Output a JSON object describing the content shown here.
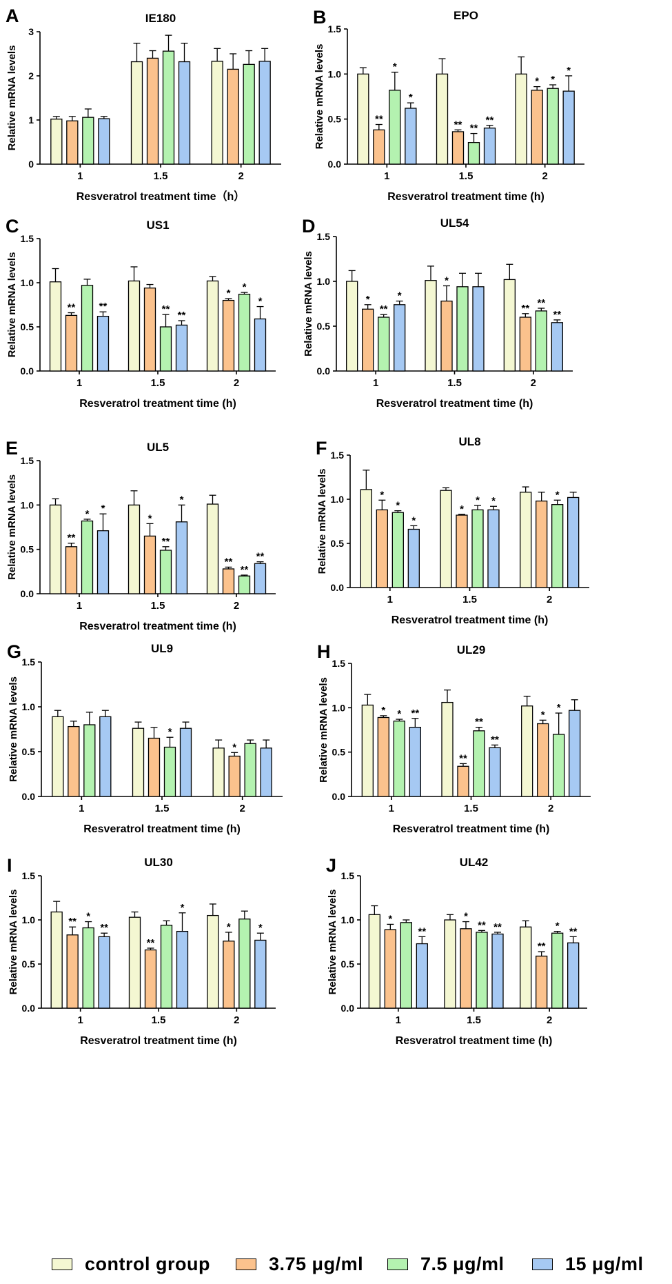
{
  "colors": {
    "control group": "#f4f7d2",
    "3.75 μg/ml": "#fbc28d",
    "7.5 μg/ml": "#b4f2b0",
    "15 μg/ml": "#a6c9f3"
  },
  "legend": {
    "items": [
      {
        "label": "control  group",
        "series": "control group"
      },
      {
        "label": "3.75 μg/ml",
        "series": "3.75 μg/ml"
      },
      {
        "label": "7.5 μg/ml",
        "series": "7.5 μg/ml"
      },
      {
        "label": "15  μg/ml",
        "series": "15 μg/ml"
      }
    ]
  },
  "chart_data": [
    {
      "panel": "A",
      "type": "bar",
      "title": "IE180",
      "xlabel": "Resveratrol treatment time（h）",
      "ylabel": "Relative mRNA levels",
      "categories": [
        "1",
        "1.5",
        "2"
      ],
      "ylim": [
        0,
        3
      ],
      "yticks": [
        "0",
        "1",
        "2",
        "3"
      ],
      "series": [
        {
          "name": "control group",
          "values": [
            1.02,
            2.32,
            2.33
          ],
          "errors": [
            0.06,
            0.42,
            0.29
          ],
          "sig": [
            "",
            "",
            ""
          ]
        },
        {
          "name": "3.75 μg/ml",
          "values": [
            0.98,
            2.4,
            2.15
          ],
          "errors": [
            0.1,
            0.17,
            0.35
          ],
          "sig": [
            "",
            "",
            ""
          ]
        },
        {
          "name": "7.5 μg/ml",
          "values": [
            1.06,
            2.56,
            2.26
          ],
          "errors": [
            0.19,
            0.36,
            0.31
          ],
          "sig": [
            "",
            "",
            ""
          ]
        },
        {
          "name": "15 μg/ml",
          "values": [
            1.03,
            2.32,
            2.33
          ],
          "errors": [
            0.05,
            0.42,
            0.29
          ],
          "sig": [
            "",
            "",
            ""
          ]
        }
      ]
    },
    {
      "panel": "B",
      "type": "bar",
      "title": "EPO",
      "xlabel": "Resveratrol treatment time (h)",
      "ylabel": "Relative mRNA levels",
      "categories": [
        "1",
        "1.5",
        "2"
      ],
      "ylim": [
        0,
        1.5
      ],
      "yticks": [
        "0.0",
        "0.5",
        "1.0",
        "1.5"
      ],
      "series": [
        {
          "name": "control group",
          "values": [
            1.0,
            1.0,
            1.0
          ],
          "errors": [
            0.07,
            0.17,
            0.19
          ],
          "sig": [
            "",
            "",
            ""
          ]
        },
        {
          "name": "3.75 μg/ml",
          "values": [
            0.38,
            0.36,
            0.82
          ],
          "errors": [
            0.06,
            0.02,
            0.04
          ],
          "sig": [
            "**",
            "**",
            "*"
          ]
        },
        {
          "name": "7.5 μg/ml",
          "values": [
            0.82,
            0.24,
            0.84
          ],
          "errors": [
            0.2,
            0.1,
            0.04
          ],
          "sig": [
            "*",
            "**",
            "*"
          ]
        },
        {
          "name": "15 μg/ml",
          "values": [
            0.62,
            0.4,
            0.81
          ],
          "errors": [
            0.06,
            0.03,
            0.17
          ],
          "sig": [
            "*",
            "**",
            "*"
          ]
        }
      ]
    },
    {
      "panel": "C",
      "type": "bar",
      "title": "US1",
      "xlabel": "Resveratrol treatment time (h)",
      "ylabel": "Relative mRNA levels",
      "categories": [
        "1",
        "1.5",
        "2"
      ],
      "ylim": [
        0,
        1.5
      ],
      "yticks": [
        "0.0",
        "0.5",
        "1.0",
        "1.5"
      ],
      "series": [
        {
          "name": "control group",
          "values": [
            1.01,
            1.02,
            1.02
          ],
          "errors": [
            0.15,
            0.16,
            0.05
          ],
          "sig": [
            "",
            "",
            ""
          ]
        },
        {
          "name": "3.75 μg/ml",
          "values": [
            0.63,
            0.94,
            0.8
          ],
          "errors": [
            0.03,
            0.04,
            0.02
          ],
          "sig": [
            "**",
            "",
            "*"
          ]
        },
        {
          "name": "7.5 μg/ml",
          "values": [
            0.97,
            0.5,
            0.87
          ],
          "errors": [
            0.07,
            0.14,
            0.02
          ],
          "sig": [
            "",
            "**",
            "*"
          ]
        },
        {
          "name": "15 μg/ml",
          "values": [
            0.62,
            0.52,
            0.59
          ],
          "errors": [
            0.05,
            0.05,
            0.14
          ],
          "sig": [
            "**",
            "**",
            "*"
          ]
        }
      ]
    },
    {
      "panel": "D",
      "type": "bar",
      "title": "UL54",
      "xlabel": "Resveratrol treatment time (h)",
      "ylabel": "Relative mRNA levels",
      "categories": [
        "1",
        "1.5",
        "2"
      ],
      "ylim": [
        0,
        1.5
      ],
      "yticks": [
        "0.0",
        "0.5",
        "1.0",
        "1.5"
      ],
      "series": [
        {
          "name": "control group",
          "values": [
            1.0,
            1.01,
            1.02
          ],
          "errors": [
            0.12,
            0.16,
            0.17
          ],
          "sig": [
            "",
            "",
            ""
          ]
        },
        {
          "name": "3.75 μg/ml",
          "values": [
            0.69,
            0.78,
            0.6
          ],
          "errors": [
            0.05,
            0.17,
            0.04
          ],
          "sig": [
            "*",
            "*",
            "**"
          ]
        },
        {
          "name": "7.5 μg/ml",
          "values": [
            0.6,
            0.94,
            0.67
          ],
          "errors": [
            0.03,
            0.15,
            0.03
          ],
          "sig": [
            "**",
            "",
            "**"
          ]
        },
        {
          "name": "15 μg/ml",
          "values": [
            0.74,
            0.94,
            0.54
          ],
          "errors": [
            0.04,
            0.15,
            0.03
          ],
          "sig": [
            "*",
            "",
            "**"
          ]
        }
      ]
    },
    {
      "panel": "E",
      "type": "bar",
      "title": "UL5",
      "xlabel": "Resveratrol treatment time (h)",
      "ylabel": "Relative mRNA levels",
      "categories": [
        "1",
        "1.5",
        "2"
      ],
      "ylim": [
        0,
        1.5
      ],
      "yticks": [
        "0.0",
        "0.5",
        "1.0",
        "1.5"
      ],
      "series": [
        {
          "name": "control group",
          "values": [
            1.0,
            1.0,
            1.01
          ],
          "errors": [
            0.07,
            0.16,
            0.1
          ],
          "sig": [
            "",
            "",
            ""
          ]
        },
        {
          "name": "3.75 μg/ml",
          "values": [
            0.53,
            0.65,
            0.28
          ],
          "errors": [
            0.04,
            0.14,
            0.02
          ],
          "sig": [
            "**",
            "*",
            "**"
          ]
        },
        {
          "name": "7.5 μg/ml",
          "values": [
            0.82,
            0.49,
            0.2
          ],
          "errors": [
            0.02,
            0.04,
            0.01
          ],
          "sig": [
            "*",
            "**",
            "**"
          ]
        },
        {
          "name": "15 μg/ml",
          "values": [
            0.71,
            0.81,
            0.34
          ],
          "errors": [
            0.19,
            0.19,
            0.02
          ],
          "sig": [
            "*",
            "*",
            "**"
          ]
        }
      ]
    },
    {
      "panel": "F",
      "type": "bar",
      "title": "UL8",
      "xlabel": "Resveratrol treatment time (h)",
      "ylabel": "Relative mRNA levels",
      "categories": [
        "1",
        "1.5",
        "2"
      ],
      "ylim": [
        0,
        1.5
      ],
      "yticks": [
        "0.0",
        "0.5",
        "1.0",
        "1.5"
      ],
      "series": [
        {
          "name": "control group",
          "values": [
            1.11,
            1.1,
            1.08
          ],
          "errors": [
            0.22,
            0.03,
            0.06
          ],
          "sig": [
            "",
            "",
            ""
          ]
        },
        {
          "name": "3.75 μg/ml",
          "values": [
            0.88,
            0.82,
            0.98
          ],
          "errors": [
            0.11,
            0.01,
            0.1
          ],
          "sig": [
            "*",
            "*",
            ""
          ]
        },
        {
          "name": "7.5 μg/ml",
          "values": [
            0.85,
            0.88,
            0.94
          ],
          "errors": [
            0.02,
            0.05,
            0.05
          ],
          "sig": [
            "*",
            "*",
            "*"
          ]
        },
        {
          "name": "15 μg/ml",
          "values": [
            0.66,
            0.88,
            1.02
          ],
          "errors": [
            0.04,
            0.04,
            0.06
          ],
          "sig": [
            "*",
            "*",
            ""
          ]
        }
      ]
    },
    {
      "panel": "G",
      "type": "bar",
      "title": "UL9",
      "xlabel": "Resveratrol treatment time (h)",
      "ylabel": "Relative mRNA levels",
      "categories": [
        "1",
        "1.5",
        "2"
      ],
      "ylim": [
        0,
        1.5
      ],
      "yticks": [
        "0.0",
        "0.5",
        "1.0",
        "1.5"
      ],
      "series": [
        {
          "name": "control group",
          "values": [
            0.89,
            0.76,
            0.54
          ],
          "errors": [
            0.07,
            0.07,
            0.09
          ],
          "sig": [
            "",
            "",
            ""
          ]
        },
        {
          "name": "3.75 μg/ml",
          "values": [
            0.78,
            0.65,
            0.45
          ],
          "errors": [
            0.06,
            0.12,
            0.04
          ],
          "sig": [
            "",
            "",
            "*"
          ]
        },
        {
          "name": "7.5 μg/ml",
          "values": [
            0.8,
            0.55,
            0.59
          ],
          "errors": [
            0.14,
            0.11,
            0.04
          ],
          "sig": [
            "",
            "*",
            ""
          ]
        },
        {
          "name": "15 μg/ml",
          "values": [
            0.89,
            0.76,
            0.54
          ],
          "errors": [
            0.07,
            0.07,
            0.09
          ],
          "sig": [
            "",
            "",
            ""
          ]
        }
      ]
    },
    {
      "panel": "H",
      "type": "bar",
      "title": "UL29",
      "xlabel": "Resveratrol treatment time (h)",
      "ylabel": "Relative mRNA levels",
      "categories": [
        "1",
        "1.5",
        "2"
      ],
      "ylim": [
        0,
        1.5
      ],
      "yticks": [
        "0.0",
        "0.5",
        "1.0",
        "1.5"
      ],
      "series": [
        {
          "name": "control group",
          "values": [
            1.03,
            1.06,
            1.02
          ],
          "errors": [
            0.12,
            0.14,
            0.11
          ],
          "sig": [
            "",
            "",
            ""
          ]
        },
        {
          "name": "3.75 μg/ml",
          "values": [
            0.89,
            0.34,
            0.82
          ],
          "errors": [
            0.02,
            0.03,
            0.04
          ],
          "sig": [
            "*",
            "**",
            "*"
          ]
        },
        {
          "name": "7.5 μg/ml",
          "values": [
            0.85,
            0.74,
            0.7
          ],
          "errors": [
            0.02,
            0.04,
            0.24
          ],
          "sig": [
            "*",
            "**",
            "*"
          ]
        },
        {
          "name": "15 μg/ml",
          "values": [
            0.78,
            0.55,
            0.97
          ],
          "errors": [
            0.1,
            0.03,
            0.12
          ],
          "sig": [
            "**",
            "**",
            ""
          ]
        }
      ]
    },
    {
      "panel": "I",
      "type": "bar",
      "title": "UL30",
      "xlabel": "Resveratrol treatment time (h)",
      "ylabel": "Relative mRNA levels",
      "categories": [
        "1",
        "1.5",
        "2"
      ],
      "ylim": [
        0,
        1.5
      ],
      "yticks": [
        "0.0",
        "0.5",
        "1.0",
        "1.5"
      ],
      "series": [
        {
          "name": "control group",
          "values": [
            1.09,
            1.03,
            1.05
          ],
          "errors": [
            0.12,
            0.06,
            0.13
          ],
          "sig": [
            "",
            "",
            ""
          ]
        },
        {
          "name": "3.75 μg/ml",
          "values": [
            0.83,
            0.66,
            0.76
          ],
          "errors": [
            0.09,
            0.02,
            0.1
          ],
          "sig": [
            "**",
            "**",
            "*"
          ]
        },
        {
          "name": "7.5 μg/ml",
          "values": [
            0.91,
            0.94,
            1.01
          ],
          "errors": [
            0.07,
            0.05,
            0.09
          ],
          "sig": [
            "*",
            "",
            ""
          ]
        },
        {
          "name": "15 μg/ml",
          "values": [
            0.81,
            0.87,
            0.77
          ],
          "errors": [
            0.04,
            0.21,
            0.08
          ],
          "sig": [
            "**",
            "*",
            "*"
          ]
        }
      ]
    },
    {
      "panel": "J",
      "type": "bar",
      "title": "UL42",
      "xlabel": "Resveratrol treatment time (h)",
      "ylabel": "Relative mRNA levels",
      "categories": [
        "1",
        "1.5",
        "2"
      ],
      "ylim": [
        0,
        1.5
      ],
      "yticks": [
        "0.0",
        "0.5",
        "1.0",
        "1.5"
      ],
      "series": [
        {
          "name": "control group",
          "values": [
            1.06,
            1.0,
            0.92
          ],
          "errors": [
            0.1,
            0.06,
            0.07
          ],
          "sig": [
            "",
            "",
            ""
          ]
        },
        {
          "name": "3.75 μg/ml",
          "values": [
            0.89,
            0.9,
            0.59
          ],
          "errors": [
            0.06,
            0.08,
            0.05
          ],
          "sig": [
            "*",
            "*",
            "**"
          ]
        },
        {
          "name": "7.5 μg/ml",
          "values": [
            0.97,
            0.86,
            0.85
          ],
          "errors": [
            0.03,
            0.02,
            0.02
          ],
          "sig": [
            "",
            "**",
            "*"
          ]
        },
        {
          "name": "15 μg/ml",
          "values": [
            0.73,
            0.84,
            0.74
          ],
          "errors": [
            0.08,
            0.02,
            0.07
          ],
          "sig": [
            "**",
            "**",
            "**"
          ]
        }
      ]
    }
  ]
}
